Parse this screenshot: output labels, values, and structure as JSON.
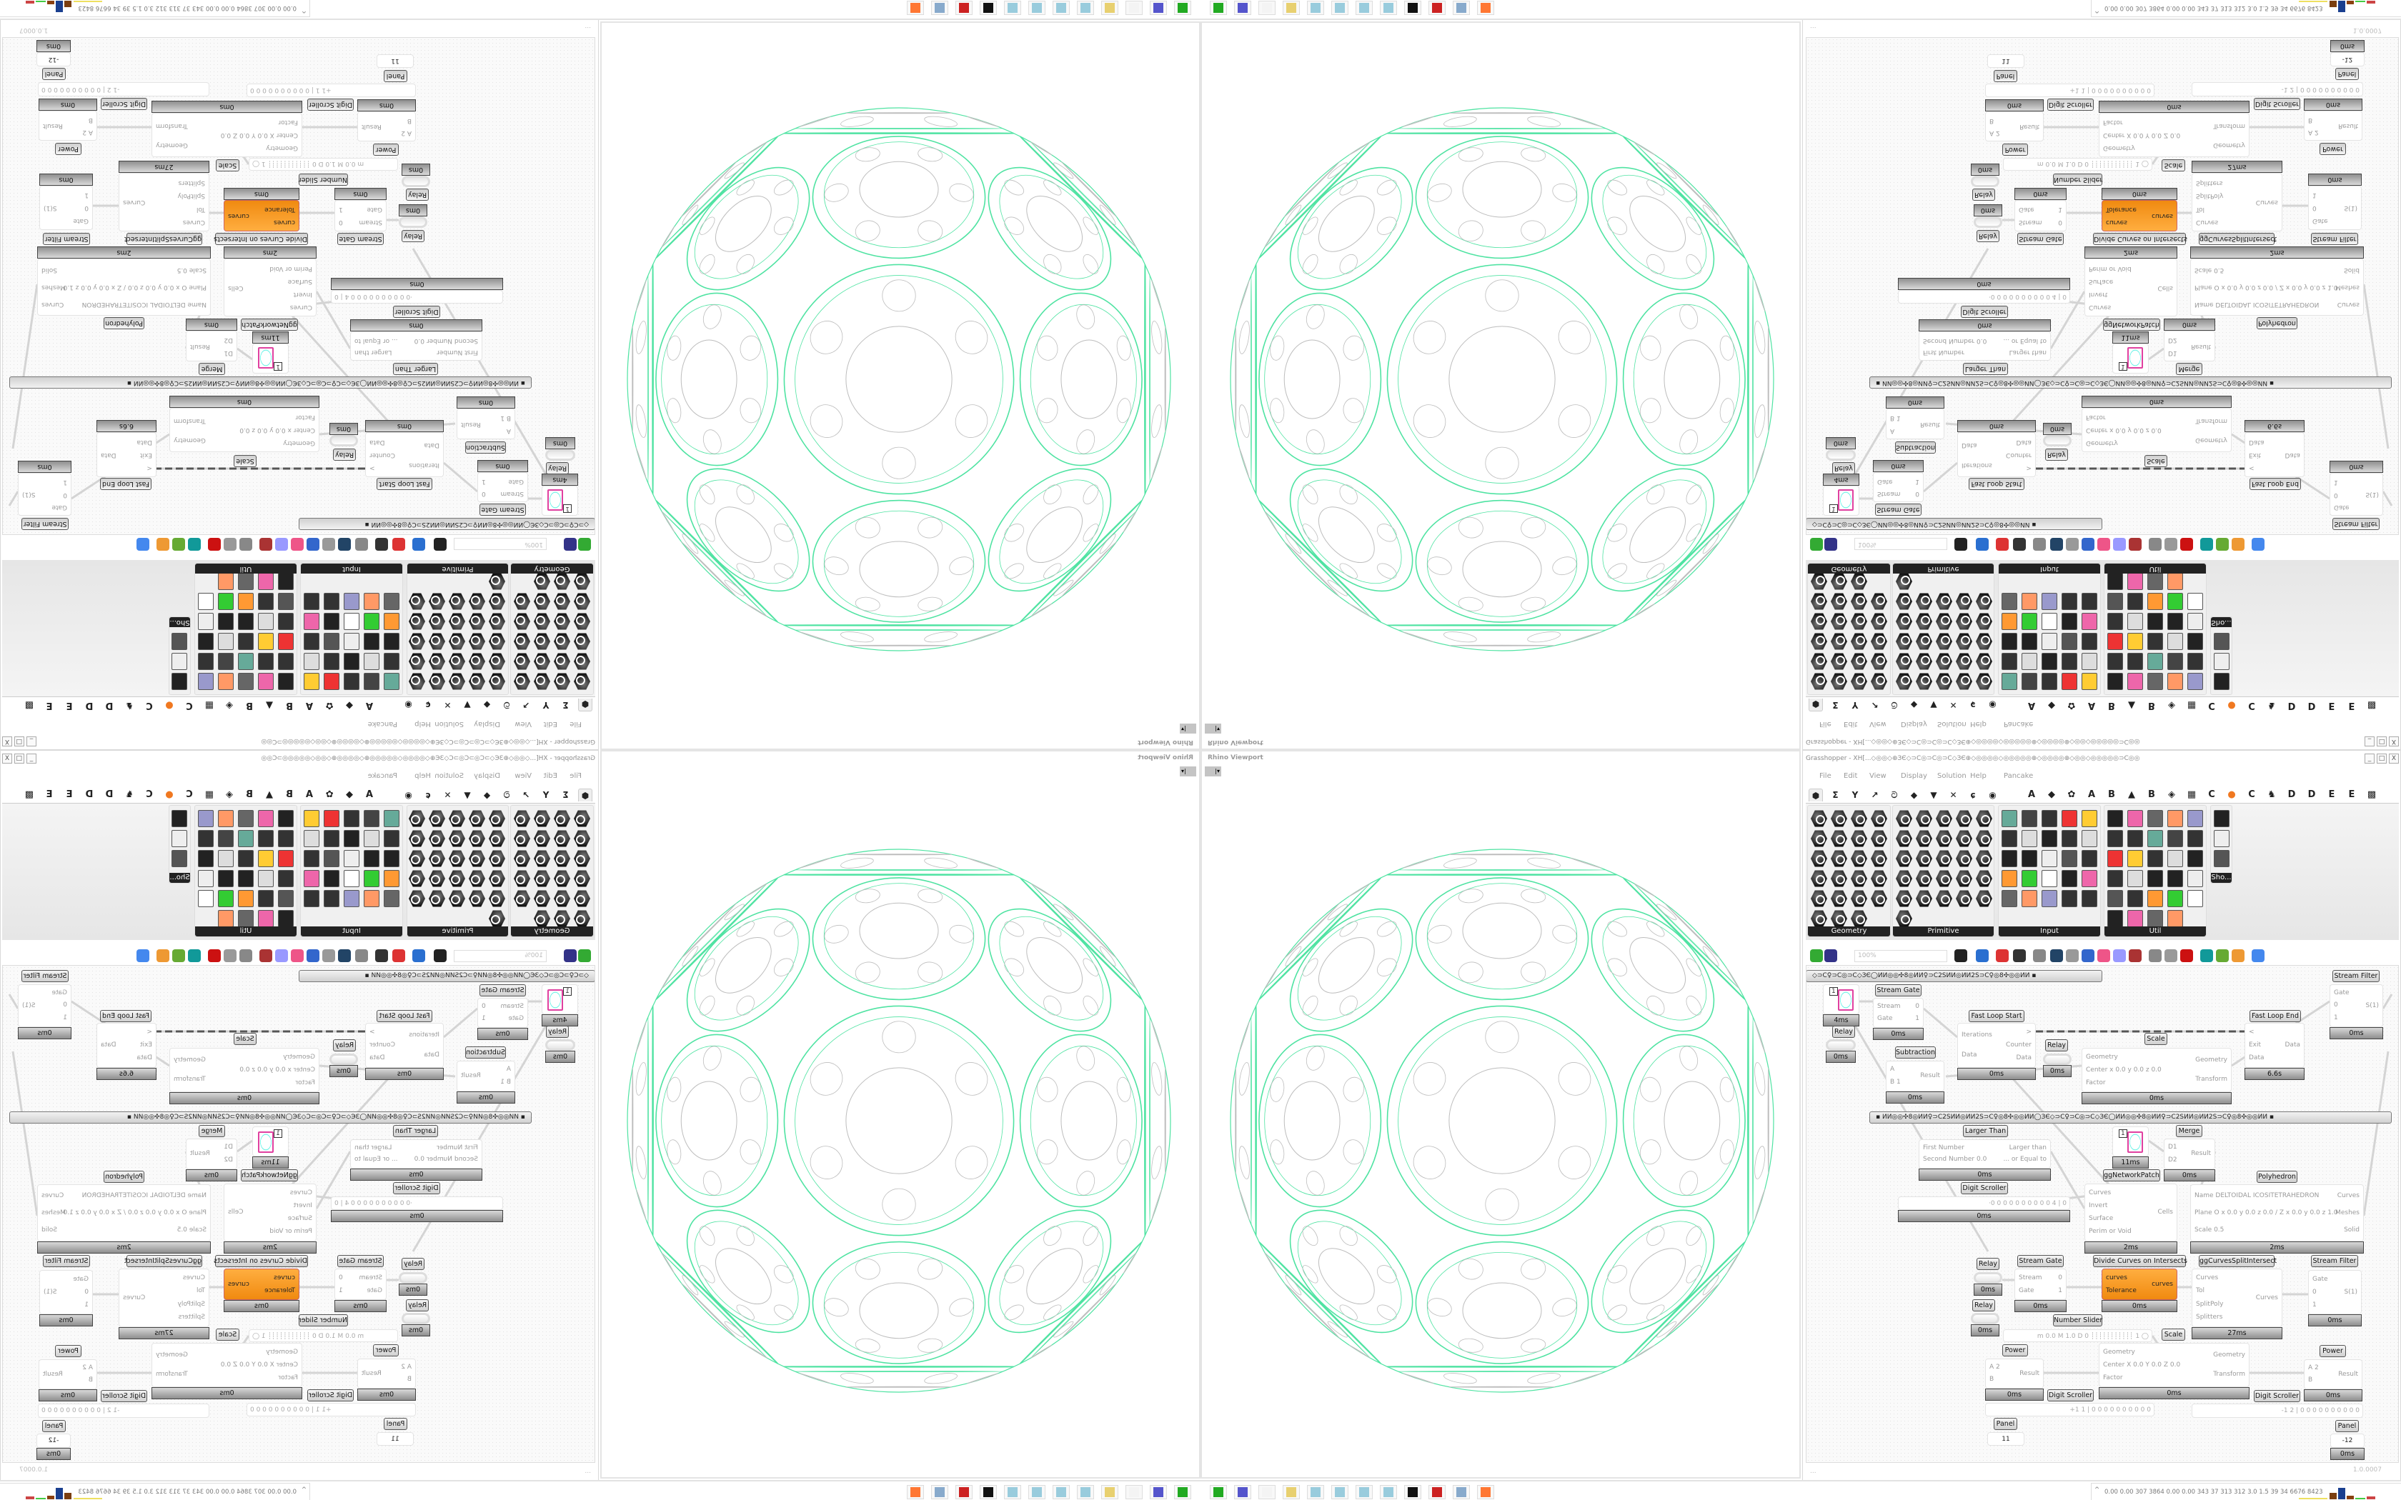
{
  "viewport": {
    "title": "Rhino Viewport",
    "dropdown": "|▾",
    "colors": {
      "network": "#4fe3a2",
      "cells": "#bdbdbd"
    }
  },
  "grasshopper": {
    "title": "Grasshopper - XH[...◇◎◎◇⊕ЗЄ◇⊃C◎⊃C◎⊃C◇ЗЄ⊕◇◎◎◎◎◇◎◎◎◎◎⊕◇◎◎◎◎⊕◇◎◎◇◎◎◎◎◎⊃C◎◎",
    "window_controls": [
      "_",
      "□",
      "X"
    ],
    "menu": [
      "File",
      "Edit",
      "View",
      "Display",
      "Solution",
      "Help",
      "Pancake"
    ],
    "tabs": [
      {
        "icon": "params-hex-icon",
        "glyph": "⬢"
      },
      {
        "icon": "maths-sigma-icon",
        "glyph": "Σ"
      },
      {
        "icon": "sets-icon",
        "glyph": "Y"
      },
      {
        "icon": "vector-icon",
        "glyph": "↗"
      },
      {
        "icon": "curve-icon",
        "glyph": "ට"
      },
      {
        "icon": "surface-icon",
        "glyph": "◆"
      },
      {
        "icon": "mesh-icon",
        "glyph": "▼"
      },
      {
        "icon": "intersect-icon",
        "glyph": "✕"
      },
      {
        "icon": "transform-icon",
        "glyph": "ɕ"
      },
      {
        "icon": "display-icon",
        "glyph": "◉"
      },
      {
        "icon": "tab-a-icon",
        "glyph": "A"
      },
      {
        "icon": "crystal-icon",
        "glyph": "◆"
      },
      {
        "icon": "flower-icon",
        "glyph": "✿"
      },
      {
        "icon": "tab-a2-icon",
        "glyph": "A"
      },
      {
        "icon": "tab-b-icon",
        "glyph": "B"
      },
      {
        "icon": "mountain-icon",
        "glyph": "▲"
      },
      {
        "icon": "tab-b2-icon",
        "glyph": "B"
      },
      {
        "icon": "shield-icon",
        "glyph": "◈"
      },
      {
        "icon": "grid-icon",
        "glyph": "▦"
      },
      {
        "icon": "tab-c-icon",
        "glyph": "C"
      },
      {
        "icon": "orange-dot-icon",
        "glyph": "●"
      },
      {
        "icon": "tab-c2-icon",
        "glyph": "C"
      },
      {
        "icon": "rooster-icon",
        "glyph": "♞"
      },
      {
        "icon": "tab-d-icon",
        "glyph": "D"
      },
      {
        "icon": "tab-d2-icon",
        "glyph": "D"
      },
      {
        "icon": "tab-e-icon",
        "glyph": "E"
      },
      {
        "icon": "tab-e2-icon",
        "glyph": "E"
      },
      {
        "icon": "more-tabs-icon",
        "glyph": "▩"
      }
    ],
    "ribbon": [
      {
        "label": "Geometry",
        "style": "hex",
        "icons": [
          "box-icon",
          "line-icon",
          "surface-icon",
          "spiral-icon",
          "point-icon",
          "plane-icon",
          "brep-icon",
          "field-icon",
          "vector-icon",
          "rectangle-icon",
          "text-icon",
          "wave-icon",
          "circle-icon",
          "cube-icon",
          "group-icon",
          "cluster-icon",
          "arc-icon",
          "mesh-icon",
          "twisted-box-icon",
          "geometry-cache-icon",
          "curve-spiral-icon",
          "sphere-net-icon",
          "magnet-icon"
        ]
      },
      {
        "label": "Primitive",
        "style": "hex",
        "icons": [
          "boolean-icon",
          "color-icon",
          "matrix-icon",
          "domain-icon",
          "file-path-icon",
          "shape-icon",
          "data-path-icon",
          "time-icon",
          "culture-icon",
          "transform-icon",
          "scissors-icon",
          "uc-icon",
          "hatch-icon",
          "path-icon",
          "integer-icon",
          "interval-icon",
          "tree-icon",
          "complex-icon",
          "number-icon",
          "grid-icon",
          "complex2-icon",
          "data-icon",
          "string-icon",
          "guid-icon",
          "material-icon",
          "generic-icon"
        ]
      },
      {
        "label": "Input",
        "style": "tile",
        "icons": [
          "import-icon",
          "toggle-frame-icon",
          "graph-icon",
          "3dm-icon",
          "omnicam-icon",
          "gradient-icon",
          "gumball-icon",
          "paint-icon",
          "xyz-icon",
          "toggle-icon",
          "swatch-icon",
          "color-wheel-icon",
          "img-icon",
          "button-icon",
          "checker-icon",
          "graph-mapper-icon",
          "pdb-icon",
          "control-icon",
          "calendar-icon",
          "knob-icon",
          "shp-icon",
          "value-list-icon",
          "clock-icon",
          "spectrum-icon",
          "id-icon"
        ]
      },
      {
        "label": "Util",
        "style": "tile",
        "icons": [
          "cherry-icon",
          "magnet-u-icon",
          "arrow-icon",
          "cs-icon",
          "a-icon",
          "play-icon",
          "record-icon",
          "search-icon",
          "spiral-util-icon",
          "cd-icon",
          "axes-icon",
          "pencil-icon",
          "timer-icon",
          "seven-icon",
          "flask-icon",
          "tree-util-icon",
          "filter-icon",
          "egg-icon",
          "wand-icon",
          "fx-icon",
          "ring-icon",
          "reset-icon",
          "premiere-icon",
          "decimal-icon",
          "palette-icon",
          "abc-icon",
          "next-arrow-icon",
          "gauge-icon",
          "close-util-icon"
        ]
      },
      {
        "label": "Sho...",
        "style": "tile",
        "icons": [
          "vr-headset-icon",
          "vr-headset-2-icon",
          "presentation-icon"
        ]
      }
    ],
    "toolbar": {
      "zoom": "100%",
      "icons": [
        "new-file-icon",
        "save-icon",
        "zoom-extents-icon",
        "preview-eye-icon",
        "sketch-icon",
        "bug-icon",
        "ghpython-icon",
        "gha-icon",
        "snapshot-icon",
        "solution-icon",
        "package-icon",
        "bulb-icon",
        "wire-cross-icon",
        "shade-icon",
        "wireframe-icon",
        "red-gem-icon",
        "teal-icon",
        "green-icon",
        "orange-sphere-icon",
        "blue-sphere-icon"
      ]
    },
    "canvas": {
      "group_bars": [
        "◇⊃C♀⊃C◎⊃C◇ЗЄ◯ИИ◎◎✣8◎ИИ♀⊃C2SИИ◎ИИ2S⊃C♀◎8✣◎◎ИИ        ▪",
        "▪        ИИ◎◎✣8◎ИИ♀⊃C2SИИ◎ИИ2S⊃C♀◎8✣◎◎ИИ◯ЗЄ◇⊃C♀⊃C◎⊃C◇ЗЄ◯ИИ◎◎✣8◎ИИ♀⊃C2SИИ◎ИИ2S⊃C♀◎8✣◎◎ИИ        ▪"
      ],
      "components": [
        {
          "title": "",
          "kind": "panel-preview",
          "value": "1",
          "time": "4ms"
        },
        {
          "title": "Relay",
          "kind": "capsule",
          "time": "0ms"
        },
        {
          "title": "Stream Gate",
          "inputs": [
            "Stream",
            "Gate"
          ],
          "outputs": [
            "0",
            "1"
          ],
          "time": "0ms"
        },
        {
          "title": "Fast Loop Start",
          "inputs": [
            "Iterations",
            "Data"
          ],
          "outputs": [
            ">",
            "Counter",
            "Data"
          ],
          "time": "0ms"
        },
        {
          "title": "Relay",
          "kind": "capsule",
          "time": "0ms"
        },
        {
          "title": "Subtraction",
          "inputs": [
            "A",
            "B  1"
          ],
          "outputs": [
            "Result"
          ],
          "time": "0ms"
        },
        {
          "title": "Scale",
          "inputs": [
            "Geometry",
            "Center x 0.0 y 0.0 z 0.0",
            "Factor"
          ],
          "outputs": [
            "Geometry",
            "Transform"
          ],
          "time": "0ms"
        },
        {
          "title": "Fast Loop End",
          "inputs": [
            "<",
            "Exit",
            "Data"
          ],
          "outputs": [
            "Data"
          ],
          "time": "6.6s"
        },
        {
          "title": "Stream Filter",
          "inputs": [
            "Gate",
            "0",
            "1"
          ],
          "outputs": [
            "S(1)"
          ],
          "time": "0ms"
        },
        {
          "title": "Larger Than",
          "inputs": [
            "First Number",
            "Second Number 0.0"
          ],
          "outputs": [
            "Larger than",
            "... or Equal to"
          ],
          "time": "0ms"
        },
        {
          "title": "",
          "kind": "panel-preview",
          "value": "1",
          "time": "11ms"
        },
        {
          "title": "Merge",
          "inputs": [
            "D1",
            "D2"
          ],
          "outputs": [
            "Result"
          ],
          "time": "0ms"
        },
        {
          "title": "ggNetworkPatch",
          "inputs": [
            "Curves",
            "Invert",
            "Surface",
            "Perim or Void"
          ],
          "outputs": [
            "Cells"
          ],
          "time": "2ms"
        },
        {
          "title": "Polyhedron",
          "inputs": [
            "Name  DELTOIDAL ICOSITETRAHEDRON",
            "Plane   O x 0.0 y 0.0 z 0.0 / Z x 0.0 y 0.0 z 1.0",
            "Scale  0.5"
          ],
          "outputs": [
            "Curves",
            "Meshes",
            "Solid"
          ],
          "time": "2ms"
        },
        {
          "title": "Digit Scroller",
          "kind": "scroller",
          "value": "·0 0 0 0 0 0 0 0 0 0 4 | 0",
          "time": "0ms"
        },
        {
          "title": "Relay",
          "kind": "capsule",
          "time": "0ms"
        },
        {
          "title": "Relay",
          "kind": "capsule",
          "time": "0ms"
        },
        {
          "title": "Stream Gate",
          "inputs": [
            "Stream",
            "Gate"
          ],
          "outputs": [
            "0",
            "1"
          ],
          "time": "0ms"
        },
        {
          "title": "Divide Curves on Intersects",
          "kind": "orange",
          "inputs": [
            "curves",
            "Tolerance"
          ],
          "outputs": [
            "curves"
          ],
          "time": "0ms"
        },
        {
          "title": "ggCurvesSplitIntersect",
          "inputs": [
            "Curves",
            "Tol",
            "SplitPoly",
            "Splitters"
          ],
          "outputs": [
            "Curves"
          ],
          "time": "27ms"
        },
        {
          "title": "Stream Filter",
          "inputs": [
            "Gate",
            "0",
            "1"
          ],
          "outputs": [
            "S(1)"
          ],
          "time": "0ms"
        },
        {
          "title": "Number Slider",
          "kind": "scroller",
          "value": "m 0.0  M 1.0  D 0   ┊┊┊┊┊┊┊┊┊┊┊ 1 ◯"
        },
        {
          "title": "Scale",
          "inputs": [
            "Geometry",
            "Center X 0.0 Y 0.0 Z 0.0",
            "Factor"
          ],
          "outputs": [
            "Geometry",
            "Transform"
          ],
          "time": "0ms"
        },
        {
          "title": "Power",
          "inputs": [
            "A 2",
            "B"
          ],
          "outputs": [
            "Result"
          ],
          "time": "0ms"
        },
        {
          "title": "Power",
          "inputs": [
            "A 2",
            "B"
          ],
          "outputs": [
            "Result"
          ],
          "time": "0ms"
        },
        {
          "title": "Digit Scroller",
          "kind": "scroller",
          "value": "+1 1 | 0 0 0 0 0 0 0 0 0 0"
        },
        {
          "title": "Digit Scroller",
          "kind": "scroller",
          "value": "-1 2 | 0 0 0 0 0 0 0 0 0 0"
        },
        {
          "title": "Panel",
          "kind": "panel",
          "value": "11"
        },
        {
          "title": "Panel",
          "kind": "panel",
          "value": "-12",
          "time": "0ms"
        }
      ]
    },
    "status": {
      "left": "...",
      "version": "1.0.0007"
    }
  },
  "taskbar": {
    "apps": [
      "green-app-icon",
      "floppy-64-icon",
      "blank-app-icon",
      "folder-icon",
      "notepad-icon",
      "notepad-icon",
      "notepad-icon",
      "notepad-icon",
      "inkscape-icon",
      "red-app-icon",
      "calculator-icon",
      "firefox-icon"
    ],
    "tray": {
      "arrow": "^",
      "stats": "0.00 0.00 307 3864 0.00 0.00 343  37  313  312  3.0  1.5  39  34  6676 8423"
    }
  }
}
